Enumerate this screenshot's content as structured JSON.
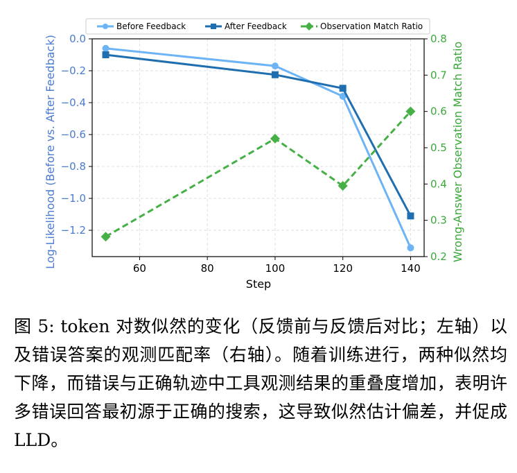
{
  "chart_data": {
    "type": "line",
    "x": [
      50,
      100,
      120,
      140
    ],
    "xlabel": "Step",
    "xticks": [
      60,
      80,
      100,
      120,
      140
    ],
    "xlim": [
      46,
      144
    ],
    "left_axis": {
      "label": "Log-Likelihood (Before vs. After Feedback)",
      "ylim": [
        -1.365,
        0.0
      ],
      "ticks": [
        0.0,
        -0.2,
        -0.4,
        -0.6,
        -0.8,
        -1.0,
        -1.2
      ],
      "tick_labels": [
        "0.0",
        "−0.2",
        "−0.4",
        "−0.6",
        "−0.8",
        "−1.0",
        "−1.2"
      ],
      "color": "#4a7bd0"
    },
    "right_axis": {
      "label": "Wrong-Answer Observation Match Ratio",
      "ylim": [
        0.2,
        0.8
      ],
      "ticks": [
        0.2,
        0.3,
        0.4,
        0.5,
        0.6,
        0.7,
        0.8
      ],
      "tick_labels": [
        "0.2",
        "0.3",
        "0.4",
        "0.5",
        "0.6",
        "0.7",
        "0.8"
      ],
      "color": "#3aa83a"
    },
    "series": [
      {
        "name": "Before Feedback",
        "axis": "left",
        "values": [
          -0.06,
          -0.17,
          -0.36,
          -1.31
        ],
        "color": "#6cb4f5",
        "marker": "circle",
        "dash": false
      },
      {
        "name": "After Feedback",
        "axis": "left",
        "values": [
          -0.1,
          -0.225,
          -0.31,
          -1.11
        ],
        "color": "#1f6fb0",
        "marker": "square",
        "dash": false
      },
      {
        "name": "Observation Match Ratio",
        "axis": "right",
        "values": [
          0.255,
          0.525,
          0.395,
          0.6
        ],
        "color": "#45b045",
        "marker": "diamond",
        "dash": true
      }
    ],
    "grid": true,
    "legend_position": "top"
  },
  "caption": "图 5: token 对数似然的变化（反馈前与反馈后对比；左轴）以及错误答案的观测匹配率（右轴）。随着训练进行，两种似然均下降，而错误与正确轨迹中工具观测结果的重叠度增加，表明许多错误回答最初源于正确的搜索，这导致似然估计偏差，并促成 LLD。"
}
